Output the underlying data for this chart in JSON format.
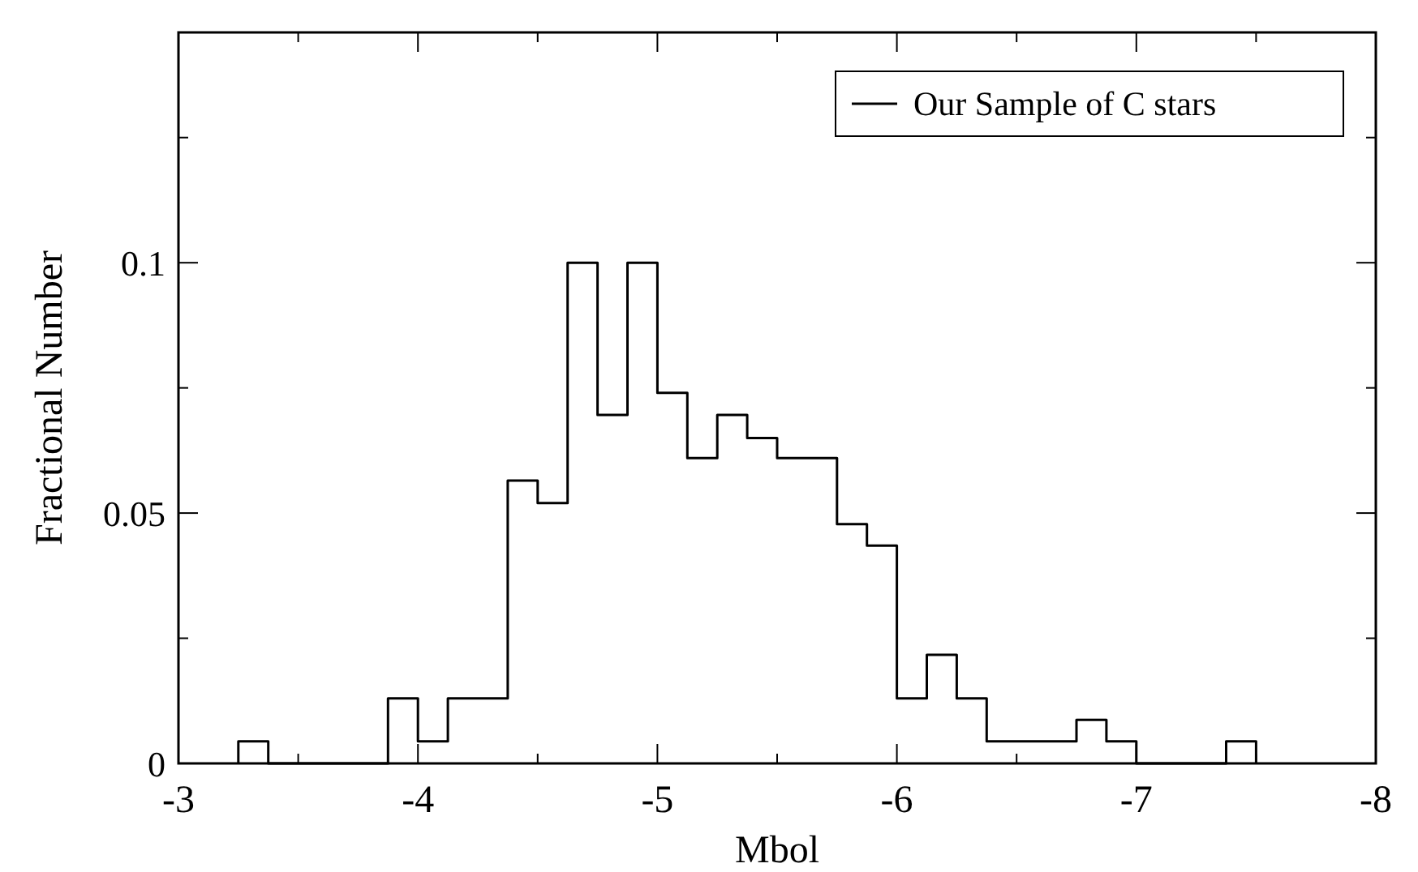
{
  "chart_data": {
    "type": "histogram",
    "xlabel": "Mbol",
    "ylabel": "Fractional Number",
    "bins": [
      -3.25,
      -3.375,
      -3.5,
      -3.625,
      -3.75,
      -3.875,
      -4,
      -4.125,
      -4.25,
      -4.375,
      -4.5,
      -4.625,
      -4.75,
      -4.875,
      -5,
      -5.125,
      -5.25,
      -5.375,
      -5.5,
      -5.625,
      -5.75,
      -5.875,
      -6,
      -6.125,
      -6.25,
      -6.375,
      -6.5,
      -6.625,
      -6.75,
      -6.875,
      -7,
      -7.125,
      -7.25,
      -7.375,
      -7.5
    ],
    "series": [
      {
        "name": "Our Sample of C stars",
        "color": "#000000",
        "values": [
          0.0044,
          0,
          0,
          0,
          0,
          0.013,
          0.0044,
          0.013,
          0.013,
          0.0565,
          0.052,
          0.1,
          0.0696,
          0.1,
          0.074,
          0.061,
          0.0696,
          0.065,
          0.061,
          0.061,
          0.0478,
          0.0435,
          0.013,
          0.0217,
          0.013,
          0.0044,
          0.0044,
          0.0044,
          0.0087,
          0.0044,
          0,
          0,
          0,
          0.0044
        ]
      }
    ],
    "xlim": [
      -3,
      -8
    ],
    "xticks": [
      -3,
      -4,
      -5,
      -6,
      -7,
      -8
    ],
    "ylim": [
      0,
      0.146
    ],
    "yticks": [
      0,
      0.05,
      0.1
    ],
    "legend": "top right",
    "grid": false
  }
}
